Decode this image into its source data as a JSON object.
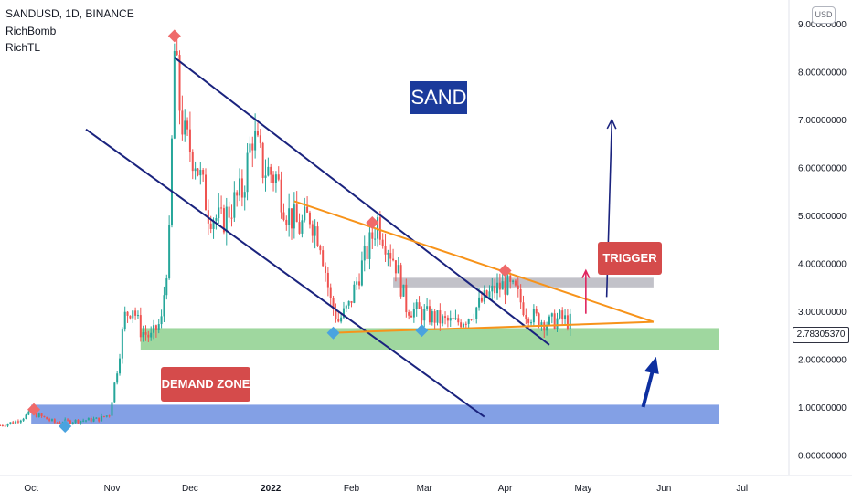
{
  "header": {
    "symbol_line": "SANDUSD, 1D, BINANCE",
    "indicators": [
      "RichBomb",
      "RichTL"
    ]
  },
  "currency_button": "USD",
  "price_tag": "2.78305370",
  "colors": {
    "bull": "#26a69a",
    "bear": "#ef5350",
    "channel": "#1a237e",
    "triangle": "#f7931a",
    "demand": "#8ed08e",
    "base": "#6d8fe0",
    "resistance": "#b7b7bf",
    "label_red": "#d54b4b",
    "sand_box": "#1b3a9b",
    "marker_red": "#ef6a6a",
    "marker_blue": "#4aa3df"
  },
  "chart_data": {
    "type": "candlestick",
    "symbol": "SANDUSD",
    "interval": "1D",
    "exchange": "BINANCE",
    "y_axis": {
      "ticks": [
        "0.00000000",
        "1.00000000",
        "2.00000000",
        "3.00000000",
        "4.00000000",
        "5.00000000",
        "6.00000000",
        "7.00000000",
        "8.00000000",
        "9.00000000"
      ],
      "range": [
        -0.2,
        9.9
      ]
    },
    "x_axis": {
      "ticks": [
        "Oct",
        "Nov",
        "Dec",
        "2022",
        "Feb",
        "Mar",
        "Apr",
        "May",
        "Jun",
        "Jul"
      ],
      "range": [
        "2021-09-19",
        "2022-07-19"
      ]
    },
    "last_price": 2.7830537,
    "close_path": [
      [
        "2021-09-19",
        0.62
      ],
      [
        "2021-09-25",
        0.7
      ],
      [
        "2021-10-01",
        0.88
      ],
      [
        "2021-10-05",
        0.8
      ],
      [
        "2021-10-10",
        0.68
      ],
      [
        "2021-10-20",
        0.72
      ],
      [
        "2021-10-27",
        0.75
      ],
      [
        "2021-10-31",
        0.85
      ],
      [
        "2021-11-03",
        1.8
      ],
      [
        "2021-11-06",
        2.9
      ],
      [
        "2021-11-09",
        3.1
      ],
      [
        "2021-11-12",
        2.6
      ],
      [
        "2021-11-16",
        2.45
      ],
      [
        "2021-11-20",
        2.8
      ],
      [
        "2021-11-23",
        4.5
      ],
      [
        "2021-11-25",
        8.4
      ],
      [
        "2021-11-27",
        7.3
      ],
      [
        "2021-11-29",
        6.6
      ],
      [
        "2021-12-03",
        6.2
      ],
      [
        "2021-12-08",
        5.1
      ],
      [
        "2021-12-13",
        4.85
      ],
      [
        "2021-12-17",
        5.2
      ],
      [
        "2021-12-21",
        5.5
      ],
      [
        "2021-12-25",
        6.7
      ],
      [
        "2021-12-29",
        6.0
      ],
      [
        "2022-01-03",
        5.8
      ],
      [
        "2022-01-07",
        5.1
      ],
      [
        "2022-01-12",
        4.75
      ],
      [
        "2022-01-16",
        5.0
      ],
      [
        "2022-01-20",
        4.5
      ],
      [
        "2022-01-24",
        3.2
      ],
      [
        "2022-01-27",
        2.8
      ],
      [
        "2022-01-31",
        3.1
      ],
      [
        "2022-02-04",
        3.8
      ],
      [
        "2022-02-08",
        4.4
      ],
      [
        "2022-02-11",
        4.9
      ],
      [
        "2022-02-14",
        4.5
      ],
      [
        "2022-02-18",
        4.0
      ],
      [
        "2022-02-22",
        3.1
      ],
      [
        "2022-02-26",
        3.0
      ],
      [
        "2022-03-03",
        2.9
      ],
      [
        "2022-03-08",
        2.8
      ],
      [
        "2022-03-13",
        2.75
      ],
      [
        "2022-03-18",
        2.9
      ],
      [
        "2022-03-23",
        3.2
      ],
      [
        "2022-03-28",
        3.45
      ],
      [
        "2022-04-01",
        3.55
      ],
      [
        "2022-04-05",
        3.4
      ],
      [
        "2022-04-09",
        3.0
      ],
      [
        "2022-04-13",
        2.85
      ],
      [
        "2022-04-18",
        2.75
      ],
      [
        "2022-04-22",
        2.85
      ],
      [
        "2022-04-26",
        2.78
      ]
    ],
    "annotations": {
      "title_box": "SAND",
      "labels": [
        "DEMAND ZONE",
        "TRIGGER"
      ],
      "zones": [
        {
          "name": "demand-zone",
          "y": [
            2.2,
            2.65
          ],
          "x": [
            "2021-11-12",
            "2022-06-22"
          ]
        },
        {
          "name": "base-zone",
          "y": [
            0.65,
            1.05
          ],
          "x": [
            "2021-10-01",
            "2022-06-22"
          ]
        },
        {
          "name": "resistance-zone",
          "y": [
            3.5,
            3.7
          ],
          "x": [
            "2022-02-17",
            "2022-05-28"
          ]
        }
      ],
      "channel_upper": [
        [
          "2021-11-25",
          8.3
        ],
        [
          "2022-04-18",
          2.3
        ]
      ],
      "channel_lower": [
        [
          "2021-10-22",
          6.8
        ],
        [
          "2022-03-24",
          0.8
        ]
      ],
      "triangle_upper": [
        [
          "2022-01-10",
          5.3
        ],
        [
          "2022-05-28",
          2.78
        ]
      ],
      "triangle_lower": [
        [
          "2022-01-24",
          2.55
        ],
        [
          "2022-05-28",
          2.78
        ]
      ],
      "arrow_blue_big": [
        [
          "2022-05-10",
          3.3
        ],
        [
          "2022-05-12",
          7.0
        ]
      ],
      "arrow_red_small": [
        [
          "2022-05-02",
          2.95
        ],
        [
          "2022-05-02",
          3.85
        ]
      ],
      "arrow_blue_bold": [
        [
          "2022-05-24",
          1.0
        ],
        [
          "2022-05-29",
          2.05
        ]
      ],
      "markers_red": [
        [
          "2021-11-25",
          8.75
        ],
        [
          "2021-10-02",
          0.95
        ],
        [
          "2022-02-09",
          4.85
        ],
        [
          "2022-04-01",
          3.85
        ]
      ],
      "markers_blue": [
        [
          "2021-10-14",
          0.6
        ],
        [
          "2022-01-25",
          2.55
        ],
        [
          "2022-02-28",
          2.6
        ]
      ]
    }
  }
}
